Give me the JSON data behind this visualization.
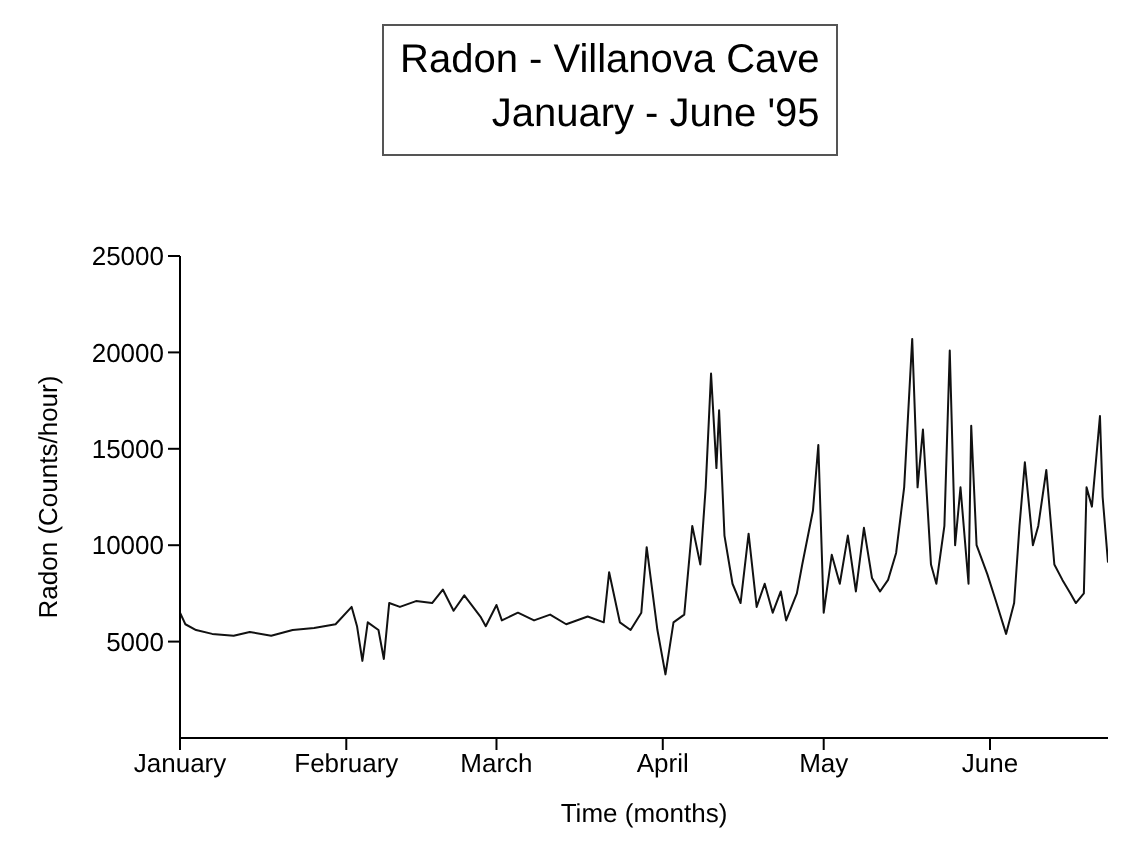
{
  "chart_data": {
    "type": "line",
    "title": "Radon - Villanova Cave",
    "subtitle": "January - June '95",
    "xlabel": "Time (months)",
    "ylabel": "Radon (Counts/hour)",
    "xlim": [
      "1995-01-01",
      "1995-06-23"
    ],
    "xticks": [
      {
        "value": "1995-01-01",
        "label": "January"
      },
      {
        "value": "1995-02-01",
        "label": "February"
      },
      {
        "value": "1995-03-01",
        "label": "March"
      },
      {
        "value": "1995-04-01",
        "label": "April"
      },
      {
        "value": "1995-05-01",
        "label": "May"
      },
      {
        "value": "1995-06-01",
        "label": "June"
      }
    ],
    "ylim": [
      0,
      25000
    ],
    "yticks": [
      5000,
      10000,
      15000,
      20000,
      25000
    ],
    "x": [
      "1995-01-01",
      "1995-01-02",
      "1995-01-04",
      "1995-01-07",
      "1995-01-11",
      "1995-01-14",
      "1995-01-18",
      "1995-01-22",
      "1995-01-26",
      "1995-01-30",
      "1995-02-02",
      "1995-02-03",
      "1995-02-04",
      "1995-02-05",
      "1995-02-07",
      "1995-02-08",
      "1995-02-09",
      "1995-02-11",
      "1995-02-14",
      "1995-02-17",
      "1995-02-19",
      "1995-02-21",
      "1995-02-23",
      "1995-02-26",
      "1995-02-27",
      "1995-03-01",
      "1995-03-02",
      "1995-03-05",
      "1995-03-08",
      "1995-03-11",
      "1995-03-14",
      "1995-03-18",
      "1995-03-21",
      "1995-03-22",
      "1995-03-24",
      "1995-03-26",
      "1995-03-28",
      "1995-03-29",
      "1995-03-31",
      "1995-04-01T12:00",
      "1995-04-03",
      "1995-04-05",
      "1995-04-06T12:00",
      "1995-04-08",
      "1995-04-09",
      "1995-04-10",
      "1995-04-11",
      "1995-04-11T12:00",
      "1995-04-12T12:00",
      "1995-04-14",
      "1995-04-15T12:00",
      "1995-04-17",
      "1995-04-18T12:00",
      "1995-04-20",
      "1995-04-21T12:00",
      "1995-04-23",
      "1995-04-24",
      "1995-04-26",
      "1995-04-27",
      "1995-04-29",
      "1995-04-30",
      "1995-05-01",
      "1995-05-02T12:00",
      "1995-05-04",
      "1995-05-05T12:00",
      "1995-05-07",
      "1995-05-08T12:00",
      "1995-05-10",
      "1995-05-11T12:00",
      "1995-05-13",
      "1995-05-14T12:00",
      "1995-05-16",
      "1995-05-17T12:00",
      "1995-05-18T12:00",
      "1995-05-19T12:00",
      "1995-05-21",
      "1995-05-22",
      "1995-05-23T12:00",
      "1995-05-24T12:00",
      "1995-05-25T12:00",
      "1995-05-26T12:00",
      "1995-05-28",
      "1995-05-28T12:00",
      "1995-05-29T12:00",
      "1995-05-31T12:00",
      "1995-06-02",
      "1995-06-04",
      "1995-06-05T12:00",
      "1995-06-06T12:00",
      "1995-06-07T12:00",
      "1995-06-09",
      "1995-06-10",
      "1995-06-11T12:00",
      "1995-06-13",
      "1995-06-14T12:00",
      "1995-06-16",
      "1995-06-17",
      "1995-06-18T12:00",
      "1995-06-19",
      "1995-06-20",
      "1995-06-21T12:00",
      "1995-06-22",
      "1995-06-23"
    ],
    "series": [
      {
        "color": "#111111",
        "values": [
          6500,
          5900,
          5600,
          5400,
          5300,
          5500,
          5300,
          5600,
          5700,
          5900,
          6800,
          5800,
          4000,
          6000,
          5600,
          4100,
          7000,
          6800,
          7100,
          7000,
          7700,
          6600,
          7400,
          6300,
          5800,
          6900,
          6100,
          6500,
          6100,
          6400,
          5900,
          6300,
          6000,
          8600,
          6000,
          5600,
          6500,
          9900,
          5600,
          3300,
          6000,
          6400,
          11000,
          9000,
          13000,
          18900,
          14000,
          17000,
          10500,
          8000,
          7000,
          10600,
          6800,
          8000,
          6500,
          7600,
          6100,
          7500,
          9000,
          11800,
          15200,
          6500,
          9500,
          8000,
          10500,
          7600,
          10900,
          8300,
          7600,
          8200,
          9600,
          13000,
          20700,
          13000,
          16000,
          9000,
          8000,
          11000,
          20100,
          10000,
          13000,
          8000,
          16200,
          10000,
          8500,
          7200,
          5400,
          7000,
          11000,
          14300,
          10000,
          11000,
          13900,
          9000,
          8200,
          7500,
          7000,
          7500,
          13000,
          12000,
          16700,
          12500,
          9100
        ]
      }
    ]
  }
}
